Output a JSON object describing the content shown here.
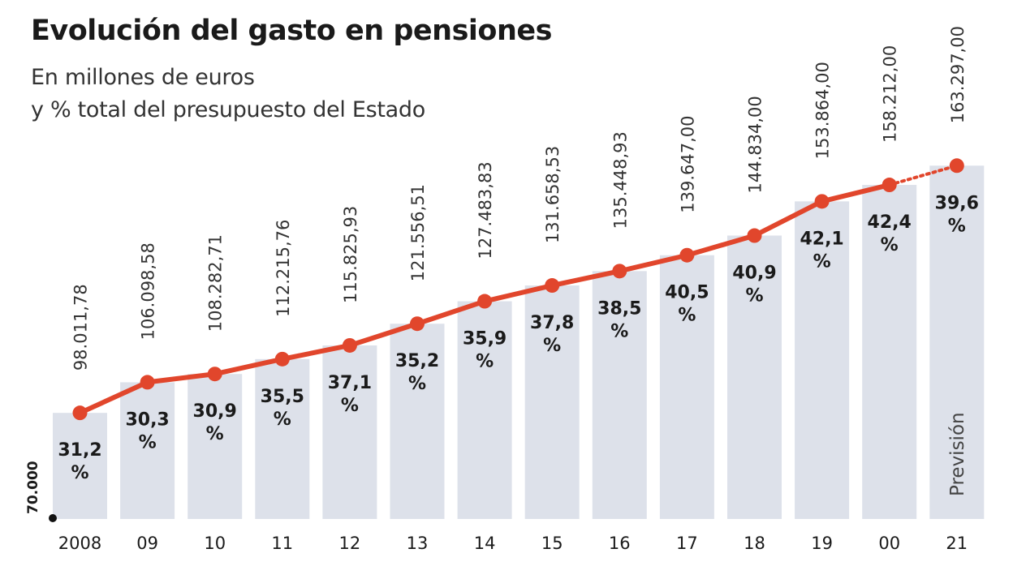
{
  "colors": {
    "bar": "#dde1ea",
    "line": "#e1462c",
    "text": "#1a1a1a",
    "value_text": "#333333"
  },
  "chart_data": {
    "type": "bar",
    "title": "Evolución del gasto en pensiones",
    "subtitle_lines": [
      "En millones de euros",
      "y % total del presupuesto del Estado"
    ],
    "categories": [
      "2008",
      "09",
      "10",
      "11",
      "12",
      "13",
      "14",
      "15",
      "16",
      "17",
      "18",
      "19",
      "00",
      "21"
    ],
    "values": [
      98011.78,
      106098.58,
      108282.71,
      112215.76,
      115825.93,
      121556.51,
      127483.83,
      131658.53,
      135448.93,
      139647.0,
      144834.0,
      153864.0,
      158212.0,
      163297.0
    ],
    "value_labels": [
      "98.011,78",
      "106.098,58",
      "108.282,71",
      "112.215,76",
      "115.825,93",
      "121.556,51",
      "127.483,83",
      "131.658,53",
      "135.448,93",
      "139.647,00",
      "144.834,00",
      "153.864,00",
      "158.212,00",
      "163.297,00"
    ],
    "percent_values": [
      31.2,
      30.3,
      30.9,
      35.5,
      37.1,
      35.2,
      35.9,
      37.8,
      38.5,
      40.5,
      40.9,
      42.1,
      42.4,
      39.6
    ],
    "percent_labels": [
      "31,2",
      "30,3",
      "30,9",
      "35,5",
      "37,1",
      "35,2",
      "35,9",
      "37,8",
      "38,5",
      "40,5",
      "40,9",
      "42,1",
      "42,4",
      "39,6"
    ],
    "percent_unit": "%",
    "ylim": [
      70000,
      164000
    ],
    "y_baseline_label": "70.000",
    "forecast_label": "Previsión",
    "forecast_index": 13,
    "series": [
      {
        "name": "Gasto en pensiones (millones de euros)",
        "values": [
          98011.78,
          106098.58,
          108282.71,
          112215.76,
          115825.93,
          121556.51,
          127483.83,
          131658.53,
          135448.93,
          139647.0,
          144834.0,
          153864.0,
          158212.0,
          163297.0
        ]
      },
      {
        "name": "% total del presupuesto del Estado",
        "values": [
          31.2,
          30.3,
          30.9,
          35.5,
          37.1,
          35.2,
          35.9,
          37.8,
          38.5,
          40.5,
          40.9,
          42.1,
          42.4,
          39.6
        ]
      }
    ],
    "grid": false
  }
}
